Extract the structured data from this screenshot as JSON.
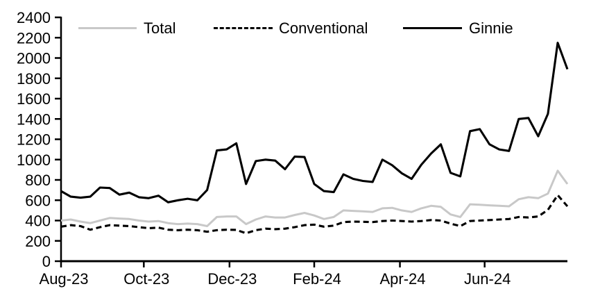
{
  "chart_data": {
    "type": "line",
    "title": "",
    "grid": false,
    "legend_position": "top",
    "x_axis": {
      "frequency": "weekly",
      "tick_labels": [
        "Aug-23",
        "Oct-23",
        "Dec-23",
        "Feb-24",
        "Apr-24",
        "Jun-24"
      ],
      "tick_week_index": [
        0,
        8.5,
        17.3,
        26,
        34.8,
        43.5
      ],
      "n_points": 53
    },
    "y_axis": {
      "min": 0,
      "max": 2400,
      "tick_step": 200,
      "tick_labels": [
        "0",
        "200",
        "400",
        "600",
        "800",
        "1000",
        "1200",
        "1400",
        "1600",
        "1800",
        "2000",
        "2200",
        "2400"
      ]
    },
    "series": [
      {
        "name": "Total",
        "color": "#c8c8c8",
        "line_style": "solid",
        "values": [
          400,
          410,
          390,
          375,
          400,
          425,
          420,
          415,
          400,
          390,
          395,
          375,
          365,
          370,
          365,
          345,
          435,
          440,
          440,
          365,
          410,
          440,
          430,
          430,
          455,
          475,
          450,
          415,
          435,
          500,
          495,
          490,
          485,
          520,
          525,
          500,
          485,
          520,
          545,
          535,
          460,
          435,
          560,
          555,
          550,
          545,
          540,
          610,
          630,
          620,
          665,
          890,
          760
        ]
      },
      {
        "name": "Conventional",
        "color": "#000000",
        "line_style": "dashed",
        "values": [
          340,
          355,
          345,
          310,
          335,
          355,
          350,
          345,
          335,
          325,
          330,
          310,
          305,
          310,
          305,
          290,
          305,
          310,
          308,
          275,
          305,
          320,
          315,
          320,
          335,
          355,
          360,
          340,
          350,
          385,
          390,
          388,
          385,
          395,
          400,
          395,
          390,
          395,
          405,
          400,
          370,
          345,
          395,
          400,
          405,
          410,
          415,
          435,
          430,
          440,
          505,
          650,
          540
        ]
      },
      {
        "name": "Ginnie",
        "color": "#000000",
        "line_style": "solid",
        "values": [
          690,
          635,
          625,
          635,
          725,
          720,
          655,
          675,
          630,
          620,
          645,
          580,
          600,
          615,
          600,
          700,
          1090,
          1100,
          1160,
          760,
          985,
          1000,
          990,
          905,
          1030,
          1025,
          760,
          690,
          680,
          855,
          810,
          790,
          780,
          1000,
          945,
          865,
          810,
          950,
          1060,
          1150,
          870,
          835,
          1280,
          1300,
          1150,
          1100,
          1085,
          1400,
          1410,
          1230,
          1450,
          2150,
          1890
        ]
      }
    ]
  }
}
